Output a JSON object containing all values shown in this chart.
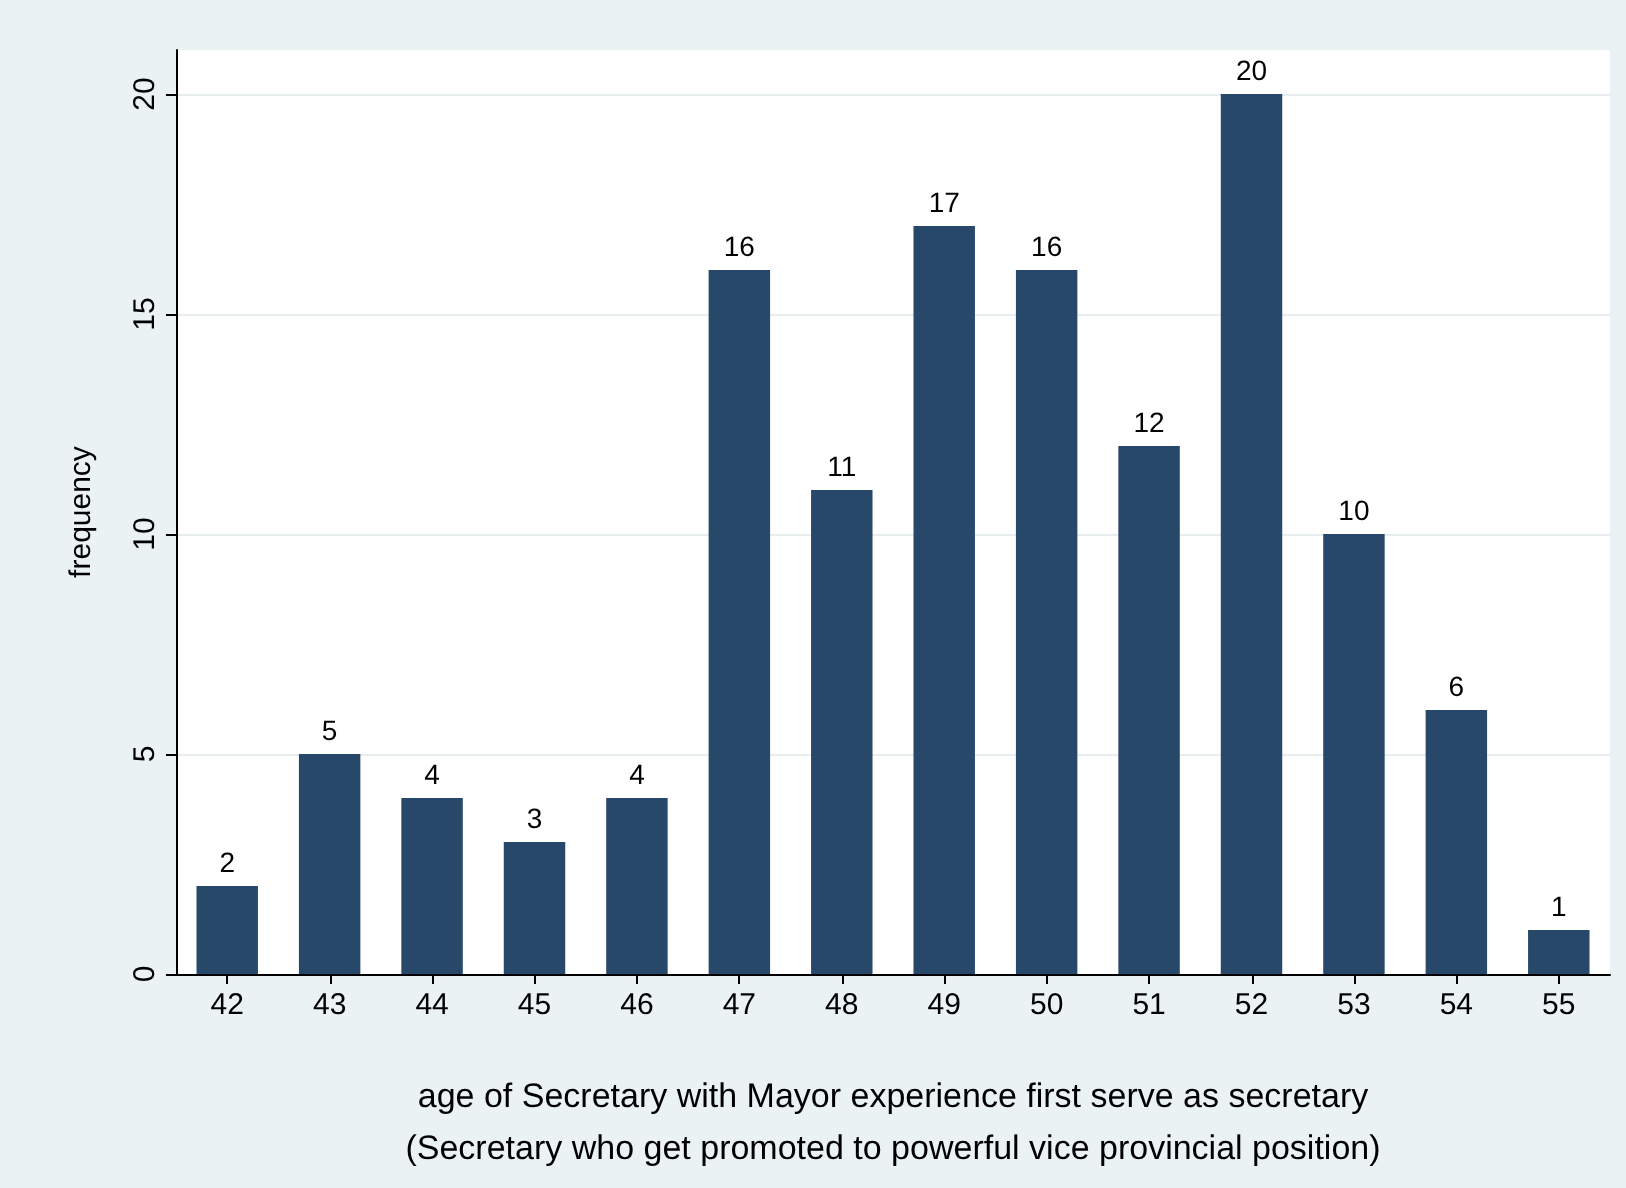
{
  "chart_data": {
    "type": "bar",
    "xlabel": "age of Secretary with Mayor experience first serve as secretary\n(Secretary who get promoted to powerful vice provincial position)",
    "ylabel": "frequency",
    "categories": [
      "42",
      "43",
      "44",
      "45",
      "46",
      "47",
      "48",
      "49",
      "50",
      "51",
      "52",
      "53",
      "54",
      "55"
    ],
    "values": [
      2,
      5,
      4,
      3,
      4,
      16,
      11,
      17,
      16,
      12,
      20,
      10,
      6,
      1
    ],
    "color": "#284869",
    "data_labels": true,
    "ylim": [
      0,
      21
    ],
    "yticks": [
      0,
      5,
      10,
      15,
      20
    ],
    "grid": "y"
  }
}
